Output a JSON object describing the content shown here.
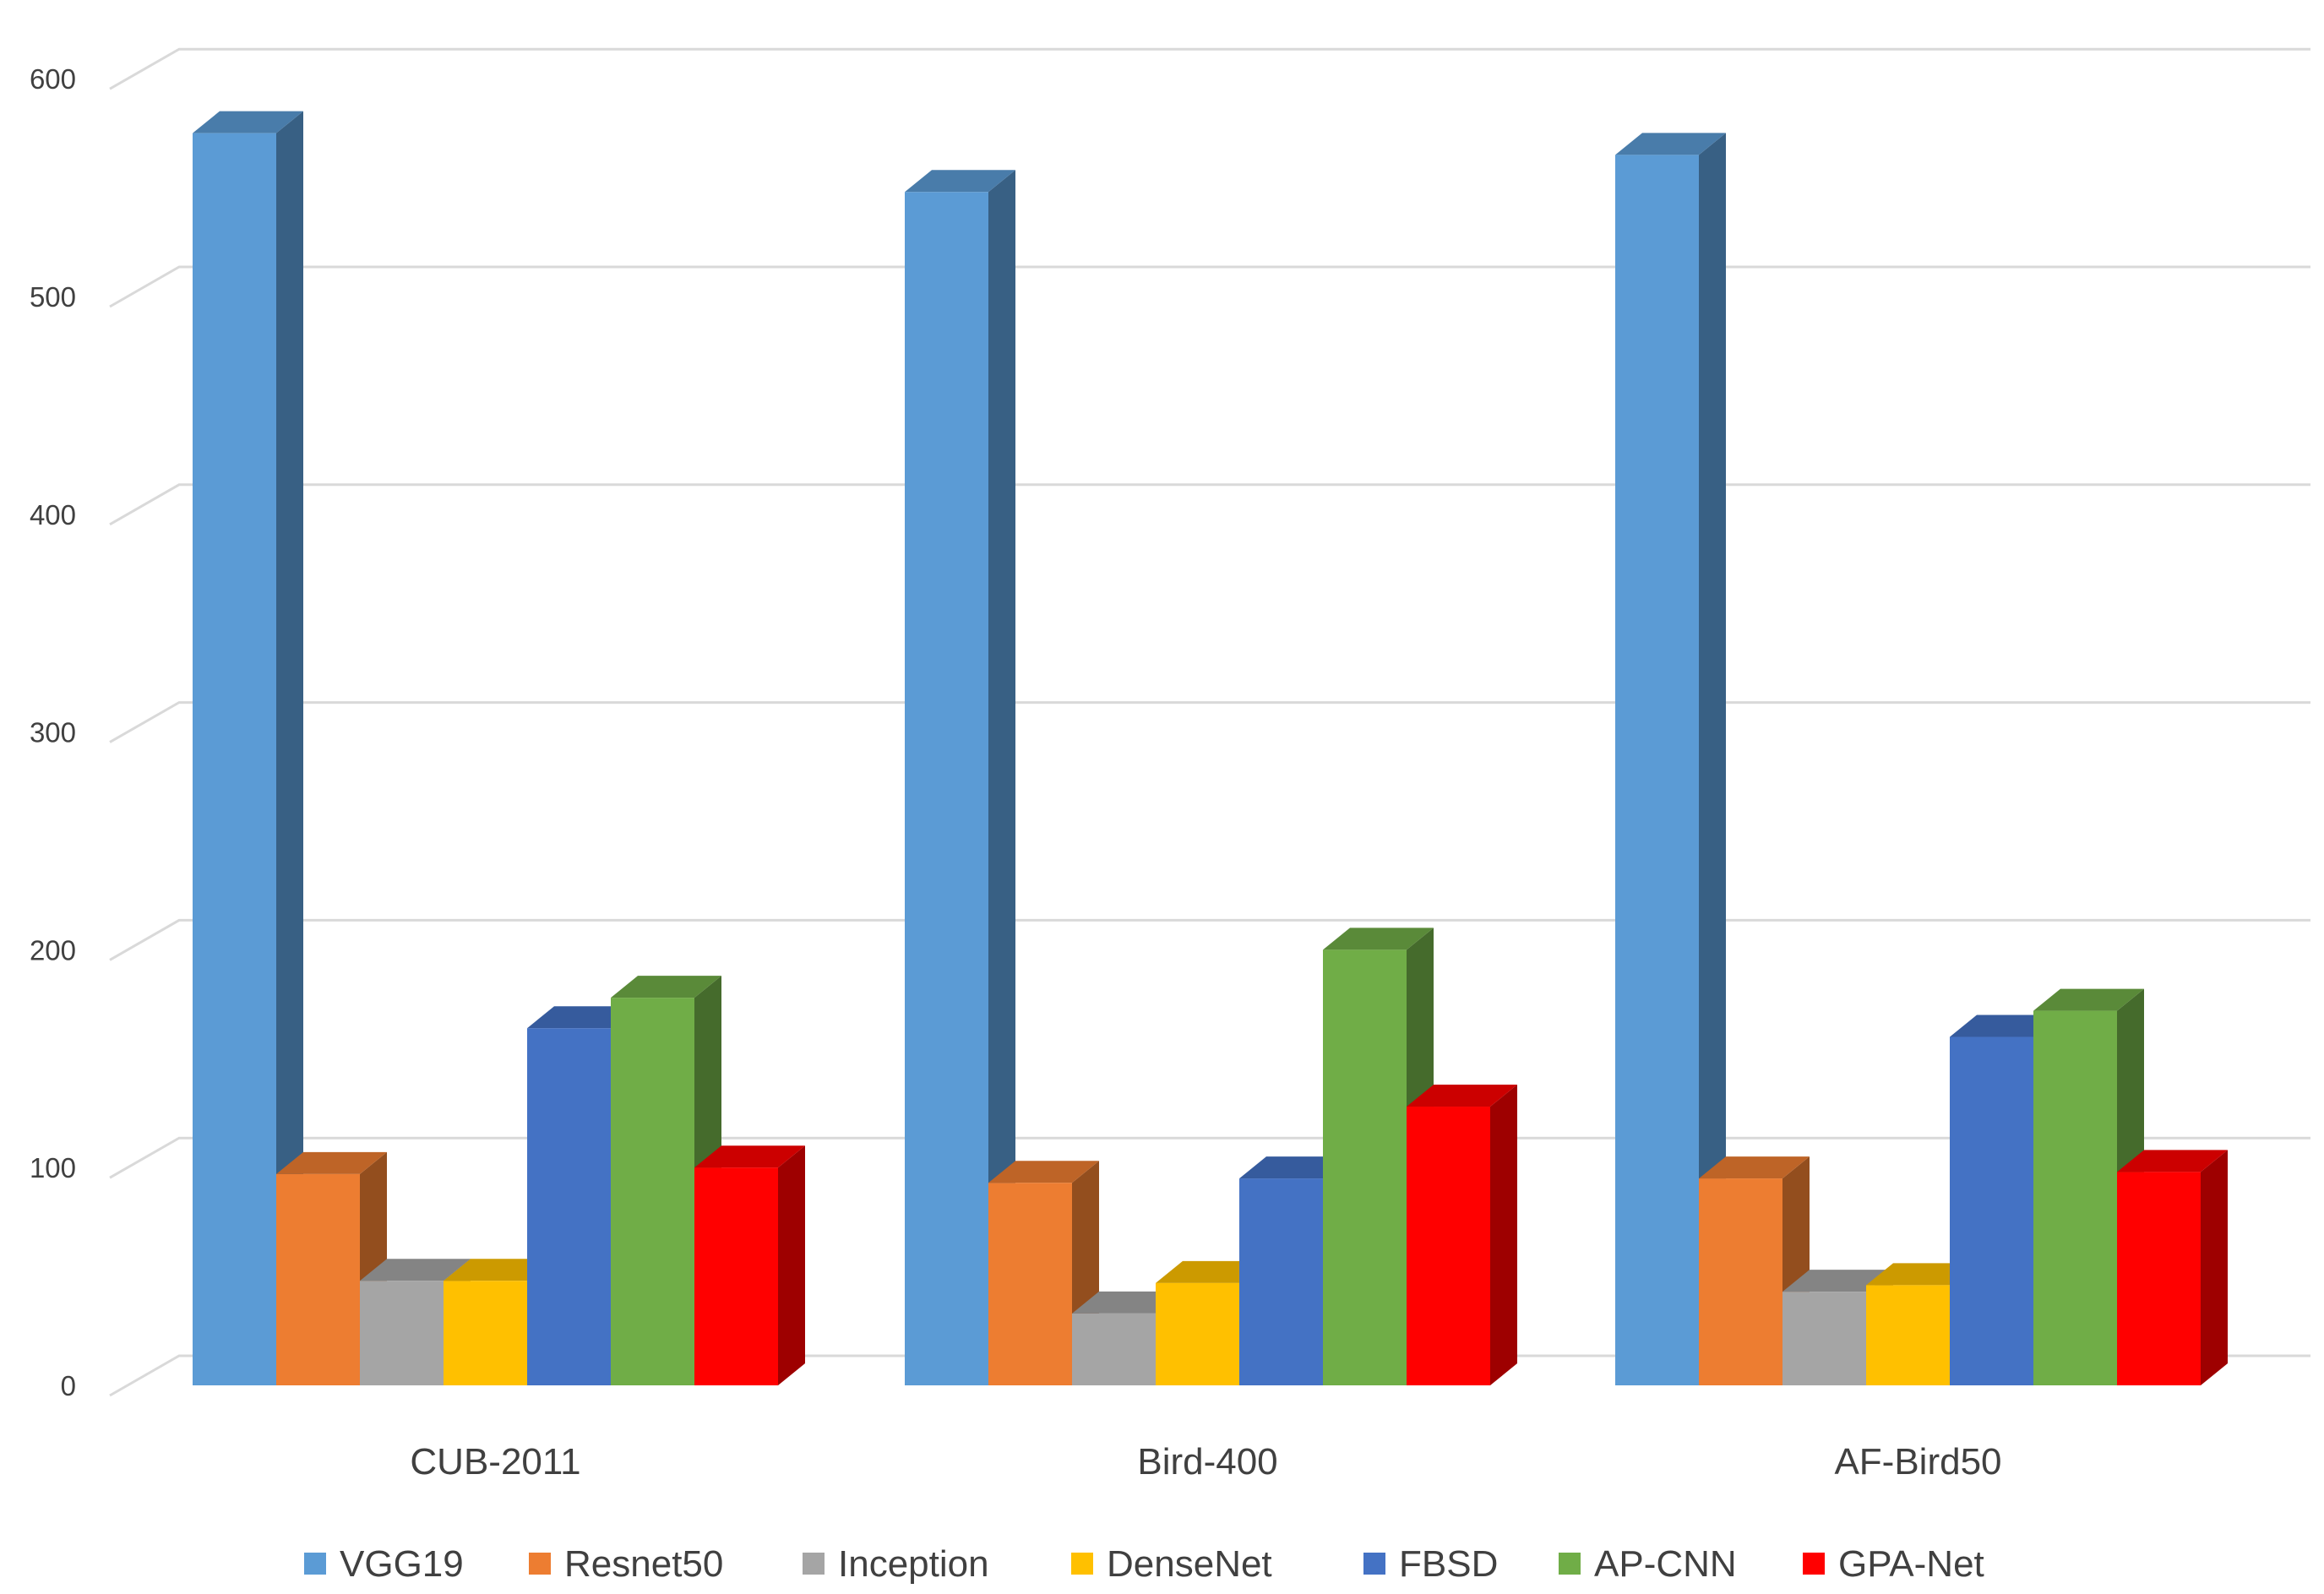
{
  "chart_data": {
    "type": "bar",
    "style": "3d-clustered-column",
    "categories": [
      "CUB-2011",
      "Bird-400",
      "AF-Bird50"
    ],
    "series": [
      {
        "name": "VGG19",
        "color": "#5b9bd5",
        "values": [
          575,
          548,
          565
        ]
      },
      {
        "name": "Resnet50",
        "color": "#ed7d31",
        "values": [
          97,
          93,
          95
        ]
      },
      {
        "name": "Inception",
        "color": "#a5a5a5",
        "values": [
          48,
          33,
          43
        ]
      },
      {
        "name": "DenseNet",
        "color": "#ffc000",
        "values": [
          48,
          47,
          46
        ]
      },
      {
        "name": "FBSD",
        "color": "#4472c4",
        "values": [
          164,
          95,
          160
        ]
      },
      {
        "name": "AP-CNN",
        "color": "#70ad47",
        "values": [
          178,
          200,
          172
        ]
      },
      {
        "name": "GPA-Net",
        "color": "#ff0000",
        "values": [
          100,
          128,
          98
        ]
      }
    ],
    "y_ticks": [
      "0",
      "100",
      "200",
      "300",
      "400",
      "500",
      "600"
    ],
    "ylim": [
      0,
      600
    ],
    "grid": true,
    "legend_position": "bottom"
  }
}
